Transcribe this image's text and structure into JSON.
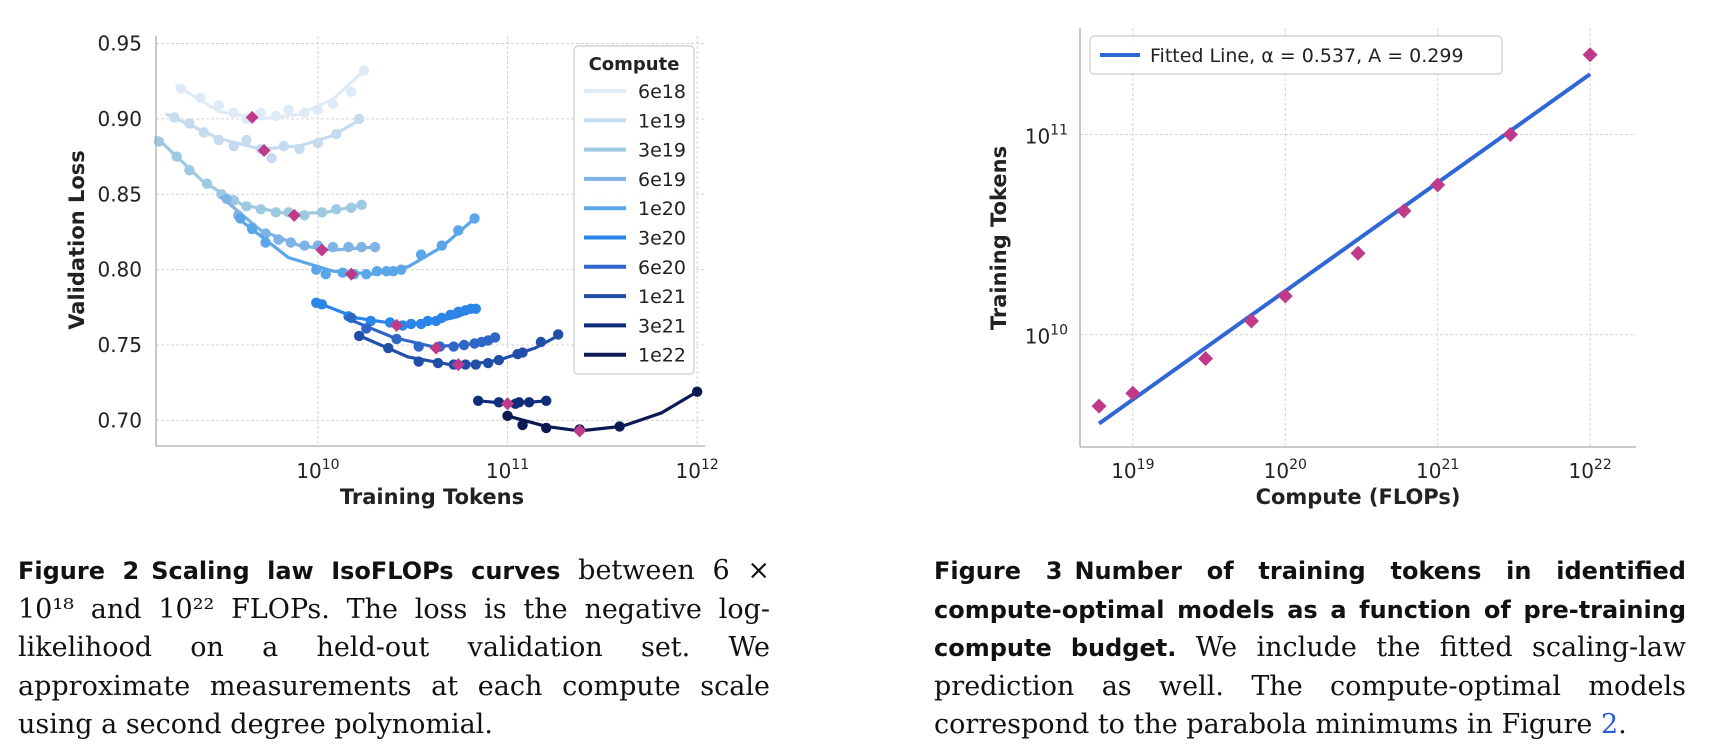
{
  "chart_data": [
    {
      "type": "scatter",
      "xlabel": "Training Tokens",
      "ylabel": "Validation Loss",
      "x_scale": "log",
      "xlim": [
        1400000000.0,
        1100000000000.0
      ],
      "ylim": [
        0.683,
        0.955
      ],
      "yticks": [
        0.7,
        0.75,
        0.8,
        0.85,
        0.9,
        0.95
      ],
      "ytick_labels": [
        "0.70",
        "0.75",
        "0.80",
        "0.85",
        "0.90",
        "0.95"
      ],
      "xticks": [
        10000000000.0,
        100000000000.0,
        1000000000000.0
      ],
      "xtick_base": "10",
      "xtick_exps": [
        "10",
        "11",
        "12"
      ],
      "grid": true,
      "legend_title": "Compute",
      "legend_position": "top-right",
      "series": [
        {
          "name": "6e18",
          "color": "#deebf7",
          "points": [
            [
              1900000000.0,
              0.92
            ],
            [
              2400000000.0,
              0.914
            ],
            [
              3000000000.0,
              0.909
            ],
            [
              3600000000.0,
              0.904
            ],
            [
              4200000000.0,
              0.9
            ],
            [
              5000000000.0,
              0.904
            ],
            [
              6000000000.0,
              0.902
            ],
            [
              7000000000.0,
              0.906
            ],
            [
              8500000000.0,
              0.904
            ],
            [
              10000000000.0,
              0.906
            ],
            [
              12000000000.0,
              0.91
            ],
            [
              15000000000.0,
              0.918
            ],
            [
              17500000000.0,
              0.932
            ]
          ],
          "fit": [
            [
              1800000000.0,
              0.922
            ],
            [
              3000000000.0,
              0.905
            ],
            [
              5000000000.0,
              0.9
            ],
            [
              8000000000.0,
              0.903
            ],
            [
              12000000000.0,
              0.913
            ],
            [
              17500000000.0,
              0.932
            ]
          ],
          "min": [
            4500000000.0,
            0.901
          ]
        },
        {
          "name": "1e19",
          "color": "#c6dbef",
          "points": [
            [
              1750000000.0,
              0.901
            ],
            [
              2100000000.0,
              0.897
            ],
            [
              2500000000.0,
              0.891
            ],
            [
              3000000000.0,
              0.886
            ],
            [
              3600000000.0,
              0.882
            ],
            [
              4200000000.0,
              0.886
            ],
            [
              5000000000.0,
              0.88
            ],
            [
              5700000000.0,
              0.874
            ],
            [
              6600000000.0,
              0.882
            ],
            [
              8000000000.0,
              0.88
            ],
            [
              10000000000.0,
              0.884
            ],
            [
              12500000000.0,
              0.89
            ],
            [
              16500000000.0,
              0.9
            ]
          ],
          "fit": [
            [
              1600000000.0,
              0.903
            ],
            [
              3000000000.0,
              0.887
            ],
            [
              5000000000.0,
              0.88
            ],
            [
              8000000000.0,
              0.882
            ],
            [
              12000000000.0,
              0.889
            ],
            [
              17000000000.0,
              0.9
            ]
          ],
          "min": [
            5200000000.0,
            0.879
          ]
        },
        {
          "name": "3e19",
          "color": "#9ecae1",
          "points": [
            [
              1450000000.0,
              0.885
            ],
            [
              1800000000.0,
              0.875
            ],
            [
              2100000000.0,
              0.866
            ],
            [
              2600000000.0,
              0.857
            ],
            [
              3100000000.0,
              0.85
            ],
            [
              3600000000.0,
              0.846
            ],
            [
              4200000000.0,
              0.842
            ],
            [
              5000000000.0,
              0.84
            ],
            [
              6000000000.0,
              0.838
            ],
            [
              7000000000.0,
              0.838
            ],
            [
              8500000000.0,
              0.836
            ],
            [
              10500000000.0,
              0.838
            ],
            [
              12500000000.0,
              0.84
            ],
            [
              15000000000.0,
              0.841
            ],
            [
              17000000000.0,
              0.843
            ]
          ],
          "fit": [
            [
              1400000000.0,
              0.888
            ],
            [
              2500000000.0,
              0.858
            ],
            [
              4000000000.0,
              0.843
            ],
            [
              7000000000.0,
              0.837
            ],
            [
              11000000000.0,
              0.838
            ],
            [
              17000000000.0,
              0.843
            ]
          ],
          "min": [
            7500000000.0,
            0.836
          ]
        },
        {
          "name": "6e19",
          "color": "#7fb2e5",
          "points": [
            [
              3300000000.0,
              0.847
            ],
            [
              3800000000.0,
              0.836
            ],
            [
              4500000000.0,
              0.828
            ],
            [
              5300000000.0,
              0.824
            ],
            [
              6200000000.0,
              0.82
            ],
            [
              7200000000.0,
              0.818
            ],
            [
              8500000000.0,
              0.816
            ],
            [
              10000000000.0,
              0.816
            ],
            [
              12000000000.0,
              0.815
            ],
            [
              14500000000.0,
              0.815
            ],
            [
              17000000000.0,
              0.815
            ],
            [
              20000000000.0,
              0.815
            ]
          ],
          "fit": [
            [
              3100000000.0,
              0.848
            ],
            [
              5000000000.0,
              0.826
            ],
            [
              8000000000.0,
              0.816
            ],
            [
              12000000000.0,
              0.813
            ],
            [
              20000000000.0,
              0.815
            ]
          ],
          "min": [
            10500000000.0,
            0.813
          ]
        },
        {
          "name": "1e20",
          "color": "#5aa6e8",
          "points": [
            [
              3900000000.0,
              0.834
            ],
            [
              4500000000.0,
              0.827
            ],
            [
              5300000000.0,
              0.818
            ],
            [
              9800000000.0,
              0.8
            ],
            [
              11000000000.0,
              0.797
            ],
            [
              13500000000.0,
              0.798
            ],
            [
              15500000000.0,
              0.797
            ],
            [
              18000000000.0,
              0.797
            ],
            [
              20500000000.0,
              0.799
            ],
            [
              23000000000.0,
              0.799
            ],
            [
              25000000000.0,
              0.799
            ],
            [
              27500000000.0,
              0.8
            ],
            [
              35000000000.0,
              0.81
            ],
            [
              45000000000.0,
              0.816
            ],
            [
              55000000000.0,
              0.826
            ],
            [
              67000000000.0,
              0.834
            ]
          ],
          "fit": [
            [
              3800000000.0,
              0.834
            ],
            [
              7000000000.0,
              0.808
            ],
            [
              12000000000.0,
              0.799
            ],
            [
              20000000000.0,
              0.797
            ],
            [
              30000000000.0,
              0.802
            ],
            [
              45000000000.0,
              0.815
            ],
            [
              67000000000.0,
              0.834
            ]
          ],
          "min": [
            15000000000.0,
            0.797
          ]
        },
        {
          "name": "3e20",
          "color": "#2a85e8",
          "points": [
            [
              9800000000.0,
              0.778
            ],
            [
              10500000000.0,
              0.777
            ],
            [
              14500000000.0,
              0.769
            ],
            [
              19000000000.0,
              0.766
            ],
            [
              24000000000.0,
              0.765
            ],
            [
              28000000000.0,
              0.763
            ],
            [
              31000000000.0,
              0.764
            ],
            [
              35000000000.0,
              0.764
            ],
            [
              38000000000.0,
              0.766
            ],
            [
              42000000000.0,
              0.766
            ],
            [
              45000000000.0,
              0.768
            ],
            [
              50000000000.0,
              0.77
            ],
            [
              55000000000.0,
              0.772
            ],
            [
              60000000000.0,
              0.773
            ],
            [
              64000000000.0,
              0.774
            ],
            [
              68000000000.0,
              0.774
            ]
          ],
          "fit": [
            [
              9500000000.0,
              0.779
            ],
            [
              16000000000.0,
              0.768
            ],
            [
              26000000000.0,
              0.764
            ],
            [
              40000000000.0,
              0.765
            ],
            [
              55000000000.0,
              0.769
            ],
            [
              68000000000.0,
              0.774
            ]
          ],
          "min": [
            26000000000.0,
            0.763
          ]
        },
        {
          "name": "6e20",
          "color": "#2f67c8",
          "points": [
            [
              15000000000.0,
              0.768
            ],
            [
              18000000000.0,
              0.761
            ],
            [
              26000000000.0,
              0.754
            ],
            [
              34000000000.0,
              0.749
            ],
            [
              44000000000.0,
              0.749
            ],
            [
              52000000000.0,
              0.749
            ],
            [
              59000000000.0,
              0.75
            ],
            [
              67000000000.0,
              0.751
            ],
            [
              73000000000.0,
              0.752
            ],
            [
              79000000000.0,
              0.753
            ],
            [
              86000000000.0,
              0.755
            ]
          ],
          "fit": [
            [
              14000000000.0,
              0.768
            ],
            [
              25000000000.0,
              0.755
            ],
            [
              40000000000.0,
              0.749
            ],
            [
              60000000000.0,
              0.75
            ],
            [
              86000000000.0,
              0.755
            ]
          ],
          "min": [
            42000000000.0,
            0.748
          ]
        },
        {
          "name": "1e21",
          "color": "#214fa8",
          "points": [
            [
              16500000000.0,
              0.756
            ],
            [
              23500000000.0,
              0.748
            ],
            [
              34000000000.0,
              0.739
            ],
            [
              43000000000.0,
              0.738
            ],
            [
              52000000000.0,
              0.737
            ],
            [
              60000000000.0,
              0.737
            ],
            [
              68000000000.0,
              0.737
            ],
            [
              79000000000.0,
              0.738
            ],
            [
              90000000000.0,
              0.74
            ],
            [
              113000000000.0,
              0.744
            ],
            [
              120000000000.0,
              0.745
            ],
            [
              150000000000.0,
              0.752
            ],
            [
              185000000000.0,
              0.757
            ]
          ],
          "fit": [
            [
              16000000000.0,
              0.757
            ],
            [
              30000000000.0,
              0.742
            ],
            [
              55000000000.0,
              0.736
            ],
            [
              90000000000.0,
              0.74
            ],
            [
              140000000000.0,
              0.748
            ],
            [
              190000000000.0,
              0.757
            ]
          ],
          "min": [
            55000000000.0,
            0.737
          ]
        },
        {
          "name": "3e21",
          "color": "#0f2d78",
          "points": [
            [
              70000000000.0,
              0.713
            ],
            [
              90000000000.0,
              0.712
            ],
            [
              110000000000.0,
              0.711
            ],
            [
              115000000000.0,
              0.712
            ],
            [
              130000000000.0,
              0.712
            ],
            [
              160000000000.0,
              0.713
            ]
          ],
          "fit": [
            [
              70000000000.0,
              0.713
            ],
            [
              105000000000.0,
              0.711
            ],
            [
              160000000000.0,
              0.713
            ]
          ],
          "min": [
            100000000000.0,
            0.711
          ]
        },
        {
          "name": "1e22",
          "color": "#0b1a52",
          "points": [
            [
              100000000000.0,
              0.703
            ],
            [
              120000000000.0,
              0.697
            ],
            [
              160000000000.0,
              0.695
            ],
            [
              240000000000.0,
              0.694
            ],
            [
              390000000000.0,
              0.696
            ],
            [
              1000000000000.0,
              0.719
            ]
          ],
          "fit": [
            [
              100000000000.0,
              0.703
            ],
            [
              160000000000.0,
              0.696
            ],
            [
              240000000000.0,
              0.693
            ],
            [
              400000000000.0,
              0.696
            ],
            [
              650000000000.0,
              0.705
            ],
            [
              1000000000000.0,
              0.719
            ]
          ],
          "min": [
            240000000000.0,
            0.693
          ]
        }
      ],
      "marker_color": "#c03a8a"
    },
    {
      "type": "scatter",
      "xlabel": "Compute (FLOPs)",
      "ylabel": "Training Tokens",
      "x_scale": "log",
      "y_scale": "log",
      "xlim": [
        4.5e+18,
        2e+22
      ],
      "ylim": [
        2750000000.0,
        340000000000.0
      ],
      "xticks": [
        1e+19,
        1e+20,
        1e+21,
        1e+22
      ],
      "xtick_base": "10",
      "xtick_exps": [
        "19",
        "20",
        "21",
        "22"
      ],
      "yticks": [
        10000000000.0,
        100000000000.0
      ],
      "ytick_base": "10",
      "ytick_exps": [
        "10",
        "11"
      ],
      "grid": true,
      "legend_position": "top-left",
      "legend_label": "Fitted Line, α = 0.537, A = 0.299",
      "fit_line": {
        "color": "#2f67d4",
        "points": [
          [
            6e+18,
            3600000000.0
          ],
          [
            1e+22,
            200000000000.0
          ]
        ]
      },
      "points": {
        "color": "#c03a8a",
        "values": [
          [
            6e+18,
            4400000000.0
          ],
          [
            1e+19,
            5100000000.0
          ],
          [
            3e+19,
            7600000000.0
          ],
          [
            6e+19,
            11700000000.0
          ],
          [
            1e+20,
            15600000000.0
          ],
          [
            3e+20,
            25500000000.0
          ],
          [
            6e+20,
            41500000000.0
          ],
          [
            1e+21,
            56000000000.0
          ],
          [
            3e+21,
            100000000000.0
          ],
          [
            1e+22,
            250000000000.0
          ]
        ]
      }
    }
  ],
  "captions": {
    "fig2": {
      "label": "Figure 2",
      "title": "Scaling law IsoFLOPs curves",
      "text": "between 6 × 10¹⁸ and 10²² FLOPs. The loss is the negative log-likelihood on a held-out validation set. We approximate measurements at each compute scale using a second degree polynomial."
    },
    "fig3": {
      "label": "Figure 3",
      "title": "Number of training tokens in identified compute-optimal models as a function of pre-training compute budget.",
      "text": "We include the fitted scaling-law prediction as well. The compute-optimal models correspond to the parabola minimums in Figure",
      "ref": "2",
      "end": "."
    }
  }
}
